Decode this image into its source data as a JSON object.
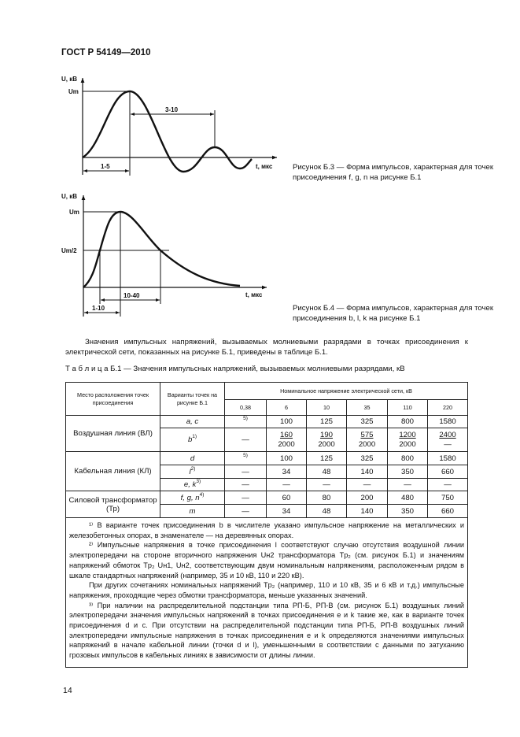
{
  "header": {
    "standard": "ГОСТ Р 54149—2010"
  },
  "figure_b3": {
    "y_axis_label": "U, кВ",
    "peak_label": "Um",
    "x_axis_label": "t, мкс",
    "dim_rise": "1-5",
    "dim_period": "3-10",
    "caption": "Рисунок Б.3 — Форма импульсов, характерная для точек присоединения f, g, n на рисунке Б.1"
  },
  "figure_b4": {
    "y_axis_label": "U, кВ",
    "peak_label": "Um",
    "half_label": "Um/2",
    "x_axis_label": "t, мкс",
    "dim_rise": "1-10",
    "dim_half": "10-40",
    "caption": "Рисунок Б.4 — Форма импульсов, характерная для точек присоединения b, l, k на рисунке Б.1"
  },
  "intro_paragraph": "Значения импульсных напряжений, вызываемых молниевыми разрядами в точках присоединения к электрической сети, показанных на рисунке Б.1, приведены в таблице Б.1.",
  "table": {
    "caption": "Т а б л и ц а  Б.1 — Значения импульсных напряжений, вызываемых молниевыми разрядами, кВ",
    "head": {
      "location": "Место расположения точек присоединения",
      "variants": "Варианты точек на рисунке Б.1",
      "voltage": "Номинальное напряжение электрической сети, кВ",
      "voltages": [
        "0,38",
        "6",
        "10",
        "35",
        "110",
        "220"
      ]
    },
    "groups": {
      "vl": "Воздушная линия (ВЛ)",
      "kl": "Кабельная линия (КЛ)",
      "tr": "Силовой трансформатор (Тр)"
    },
    "rows": [
      {
        "variant": "a, c",
        "sup": "",
        "values": [
          "5)",
          "100",
          "125",
          "325",
          "800",
          "1580"
        ]
      },
      {
        "variant": "b",
        "sup": "1)",
        "values": [
          "—",
          "160",
          "190",
          "575",
          "1200",
          "2400"
        ],
        "denominators": [
          "2000",
          "2000",
          "2000",
          "2000",
          "—"
        ]
      },
      {
        "variant": "d",
        "sup": "",
        "values": [
          "5)",
          "100",
          "125",
          "325",
          "800",
          "1580"
        ]
      },
      {
        "variant": "l",
        "sup": "2)",
        "values": [
          "—",
          "34",
          "48",
          "140",
          "350",
          "660"
        ]
      },
      {
        "variant": "e, k",
        "sup": "3)",
        "values": [
          "—",
          "—",
          "—",
          "—",
          "—",
          "—"
        ]
      },
      {
        "variant": "f, g, n",
        "sup": "4)",
        "values": [
          "—",
          "60",
          "80",
          "200",
          "480",
          "750"
        ]
      },
      {
        "variant": "m",
        "sup": "",
        "values": [
          "—",
          "34",
          "48",
          "140",
          "350",
          "660"
        ]
      }
    ],
    "footnotes": [
      "¹⁾ В варианте точек присоединения b в числителе указано импульсное напряжение на металлических и железобетонных опорах, в знаменателе — на деревянных опорах.",
      "²⁾ Импульсные напряжения в точке присоединения l соответствуют случаю отсутствия воздушной линии электропередачи на стороне вторичного напряжения Uн2 трансформатора Tp₂ (см. рисунок Б.1) и значениям напряжений обмоток Tp₂ Uн1, Uн2, соответствующим двум номинальным напряжениям, расположенным рядом в шкале стандартных напряжений (например, 35 и 10 кВ, 110 и 220 кВ).",
      "При других сочетаниях номинальных напряжений Tp₂ (например, 110 и 10 кВ, 35 и 6 кВ и т.д.) импульсные напряжения, проходящие через обмотки трансформатора, меньше указанных значений.",
      "³⁾ При наличии на распределительной подстанции типа РП-Б, РП-В (см. рисунок Б.1) воздушных линий электропередачи значения импульсных напряжений в точках присоединения e и k такие же, как в варианте точек присоединения d и c. При отсутствии на распределительной подстанции типа РП-Б, РП-В воздушных линий электропередачи импульсные напряжения в точках присоединения e и k определяются значениями импульсных напряжений в начале кабельной линии (точки d и l), уменьшенными в соответствии с данными по затуханию грозовых импульсов в кабельных линиях в зависимости от длины линии."
    ]
  },
  "page_number": "14"
}
